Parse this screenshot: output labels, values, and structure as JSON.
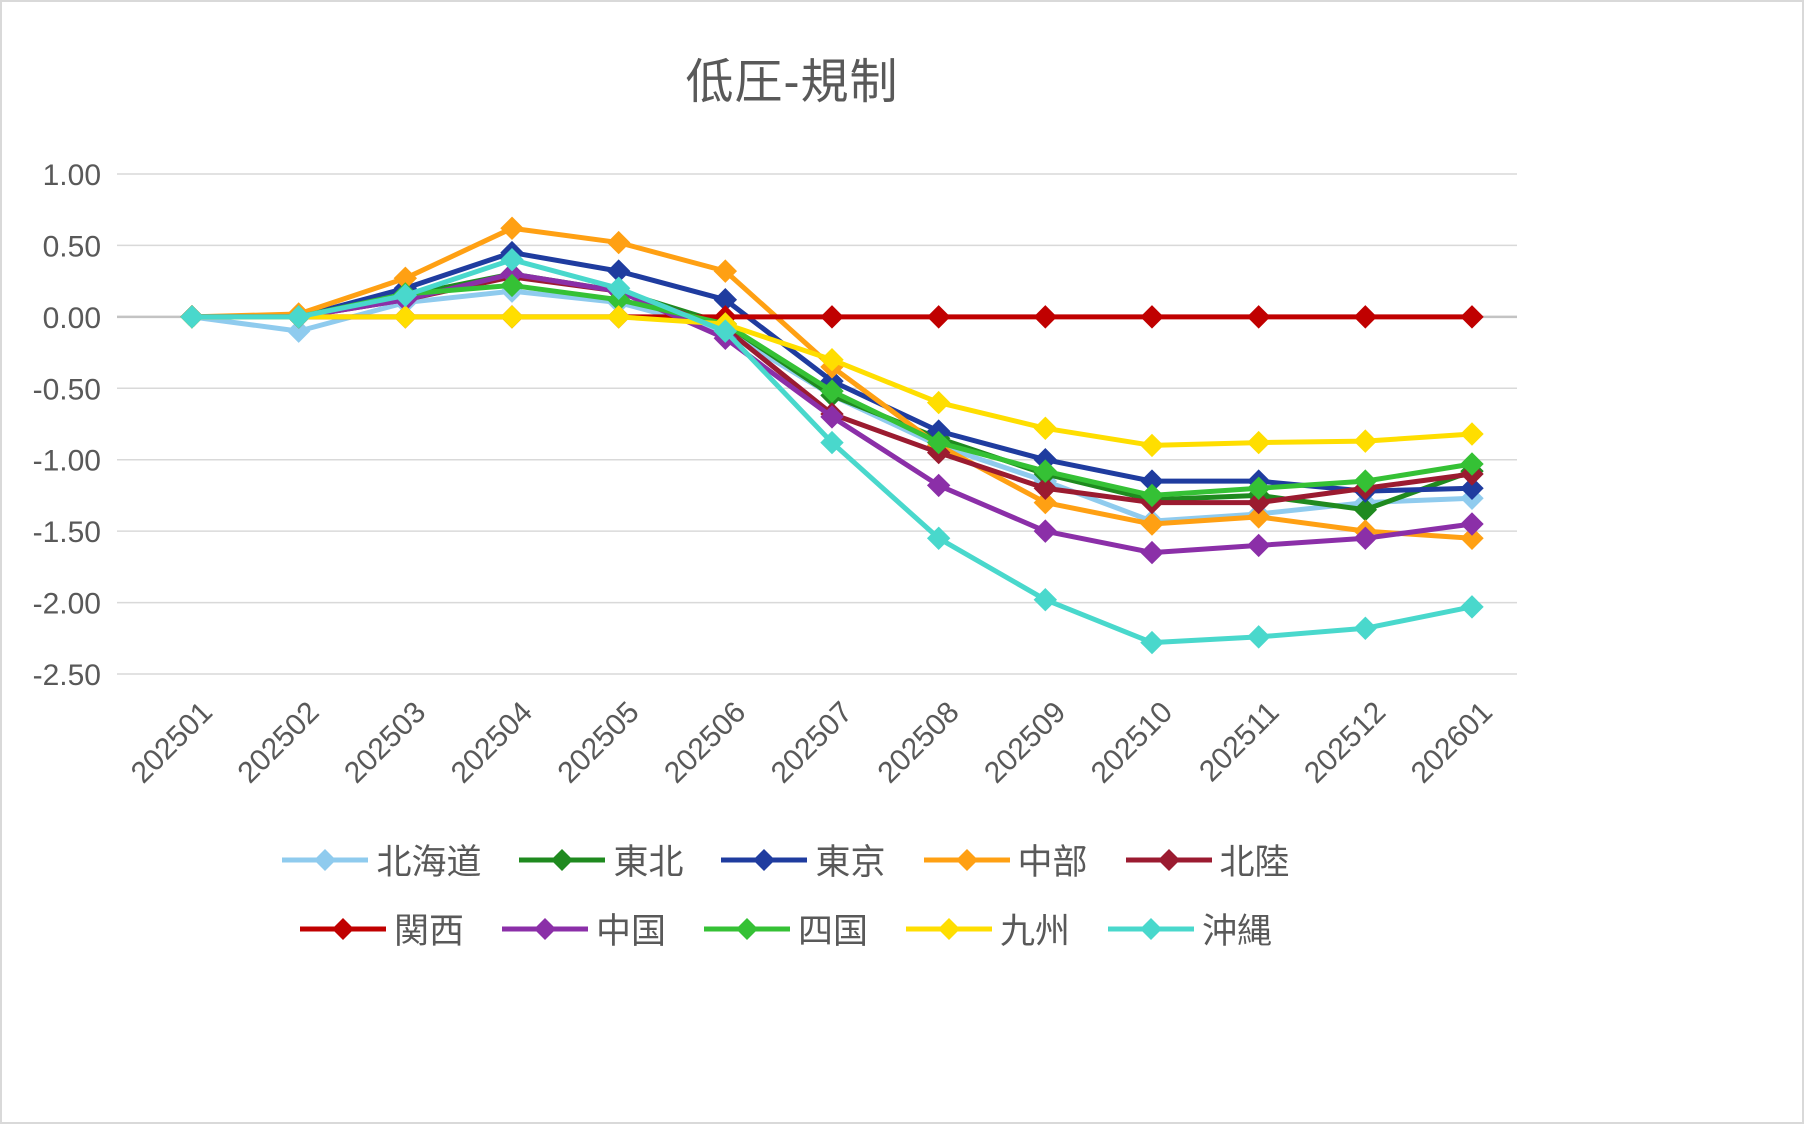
{
  "chart_data": {
    "type": "line",
    "title": "低圧-規制",
    "categories": [
      "202501",
      "202502",
      "202503",
      "202504",
      "202505",
      "202506",
      "202507",
      "202508",
      "202509",
      "202510",
      "202511",
      "202512",
      "202601"
    ],
    "yticks": [
      1.0,
      0.5,
      0.0,
      -0.5,
      -1.0,
      -1.5,
      -2.0,
      -2.5
    ],
    "ytick_labels": [
      "1.00",
      "0.50",
      "0.00",
      "-0.50",
      "-1.00",
      "-1.50",
      "-2.00",
      "-2.50"
    ],
    "ylim": [
      -2.5,
      1.0
    ],
    "grid": true,
    "legend_position": "bottom",
    "legend_rows": [
      [
        "北海道",
        "東北",
        "東京",
        "中部",
        "北陸"
      ],
      [
        "関西",
        "中国",
        "四国",
        "九州",
        "沖縄"
      ]
    ],
    "series": [
      {
        "name": "北海道",
        "color": "#8FCBEE",
        "values": [
          0.0,
          -0.1,
          0.1,
          0.18,
          0.1,
          -0.1,
          -0.55,
          -0.9,
          -1.15,
          -1.43,
          -1.38,
          -1.3,
          -1.27
        ]
      },
      {
        "name": "東北",
        "color": "#1F8A1F",
        "values": [
          0.0,
          0.0,
          0.15,
          0.3,
          0.18,
          -0.05,
          -0.55,
          -0.85,
          -1.1,
          -1.28,
          -1.25,
          -1.35,
          -1.08
        ]
      },
      {
        "name": "東京",
        "color": "#1F3C9F",
        "values": [
          0.0,
          0.0,
          0.2,
          0.45,
          0.32,
          0.12,
          -0.45,
          -0.8,
          -1.0,
          -1.15,
          -1.15,
          -1.22,
          -1.2
        ]
      },
      {
        "name": "中部",
        "color": "#FFA013",
        "values": [
          0.0,
          0.02,
          0.27,
          0.62,
          0.52,
          0.32,
          -0.35,
          -0.9,
          -1.3,
          -1.45,
          -1.4,
          -1.5,
          -1.55
        ]
      },
      {
        "name": "北陸",
        "color": "#9B1B30",
        "values": [
          0.0,
          0.0,
          0.12,
          0.28,
          0.18,
          -0.08,
          -0.68,
          -0.95,
          -1.2,
          -1.3,
          -1.3,
          -1.2,
          -1.1
        ]
      },
      {
        "name": "関西",
        "color": "#C00000",
        "values": [
          0.0,
          0.0,
          0.0,
          0.0,
          0.0,
          0.0,
          0.0,
          0.0,
          0.0,
          0.0,
          0.0,
          0.0,
          0.0
        ]
      },
      {
        "name": "中国",
        "color": "#8B2FA8",
        "values": [
          0.0,
          0.0,
          0.12,
          0.3,
          0.18,
          -0.15,
          -0.7,
          -1.18,
          -1.5,
          -1.65,
          -1.6,
          -1.55,
          -1.45
        ]
      },
      {
        "name": "四国",
        "color": "#35C135",
        "values": [
          0.0,
          0.0,
          0.16,
          0.22,
          0.12,
          -0.05,
          -0.52,
          -0.88,
          -1.08,
          -1.25,
          -1.2,
          -1.15,
          -1.03
        ]
      },
      {
        "name": "九州",
        "color": "#FFDE00",
        "values": [
          0.0,
          0.0,
          0.0,
          0.0,
          0.0,
          -0.05,
          -0.3,
          -0.6,
          -0.78,
          -0.9,
          -0.88,
          -0.87,
          -0.82
        ]
      },
      {
        "name": "沖縄",
        "color": "#49D8CC",
        "values": [
          0.0,
          0.0,
          0.15,
          0.4,
          0.2,
          -0.1,
          -0.88,
          -1.55,
          -1.98,
          -2.28,
          -2.24,
          -2.18,
          -2.03
        ]
      }
    ],
    "colors": {
      "grid": "#D9D9D9",
      "zero_line": "#C3C3C3",
      "text": "#595959",
      "background": "#FFFFFF",
      "border": "#D9D9D9"
    }
  }
}
